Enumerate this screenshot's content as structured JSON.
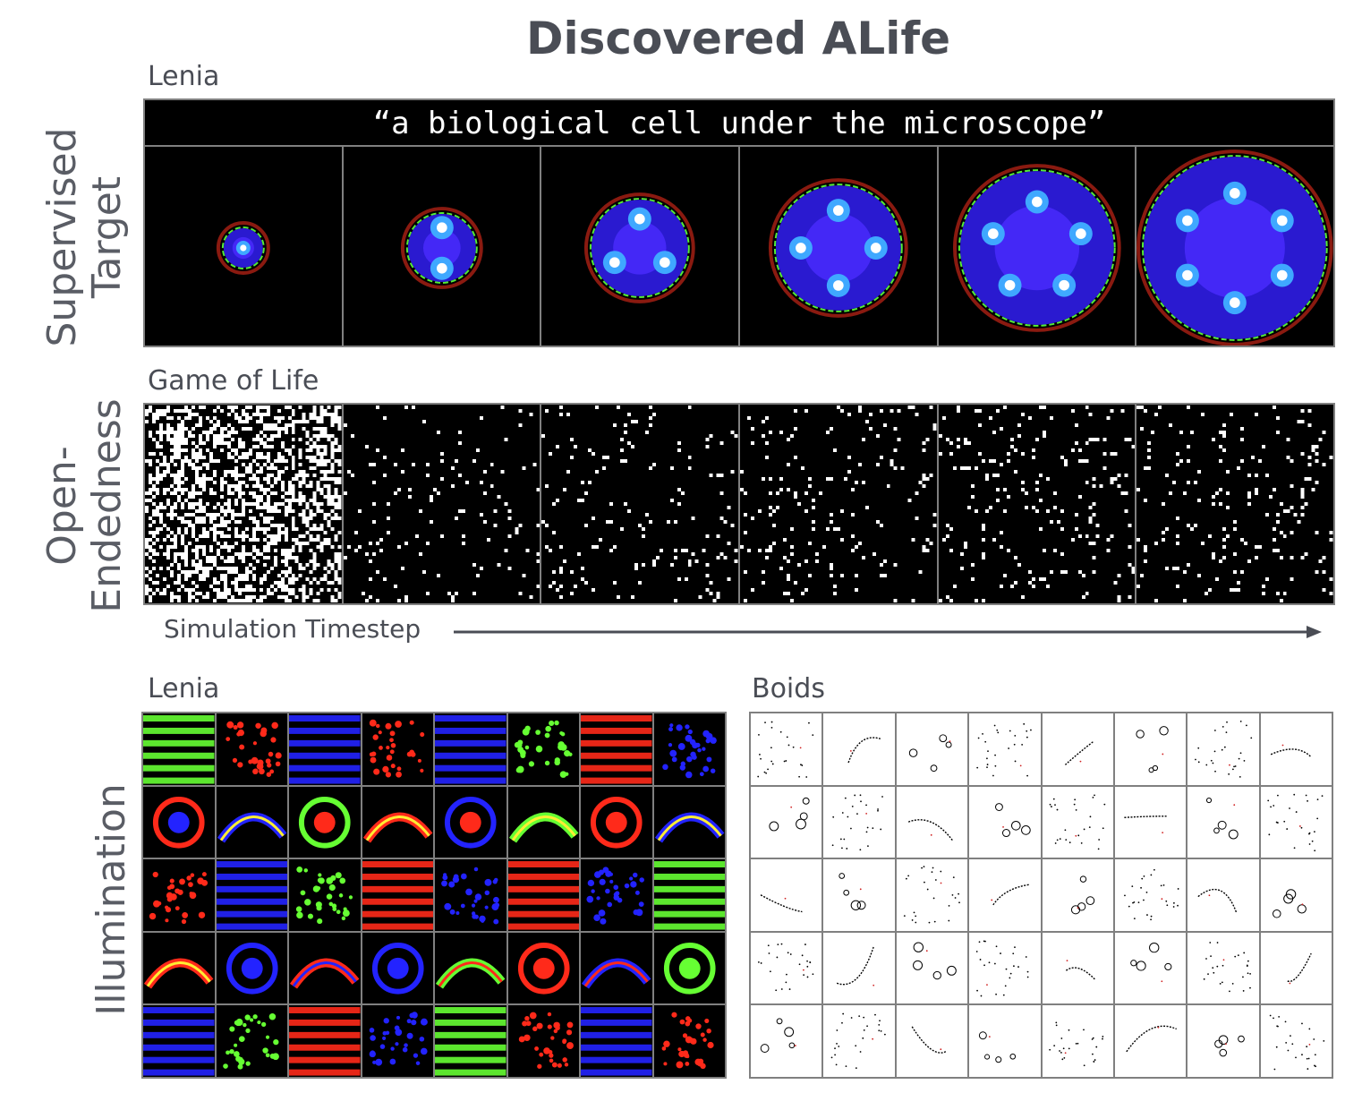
{
  "title": "Discovered ALife",
  "supervised": {
    "row_label": "Supervised\nTarget",
    "section_label": "Lenia",
    "prompt": "“a biological cell under the microscope”",
    "frames": 6
  },
  "open_endedness": {
    "row_label": "Open-\nEndedness",
    "section_label": "Game of Life",
    "frames": 6
  },
  "axis": {
    "label": "Simulation Timestep"
  },
  "illumination": {
    "row_label": "Illumination",
    "lenia_label": "Lenia",
    "boids_label": "Boids",
    "lenia_grid": {
      "cols": 8,
      "rows": 5
    },
    "boids_grid": {
      "cols": 8,
      "rows": 5
    }
  },
  "colors": {
    "text": "#4a4d55",
    "border": "#808080",
    "lenia_blue": "#2323ff",
    "lenia_green": "#66ff33",
    "lenia_red": "#ff2a1a"
  }
}
